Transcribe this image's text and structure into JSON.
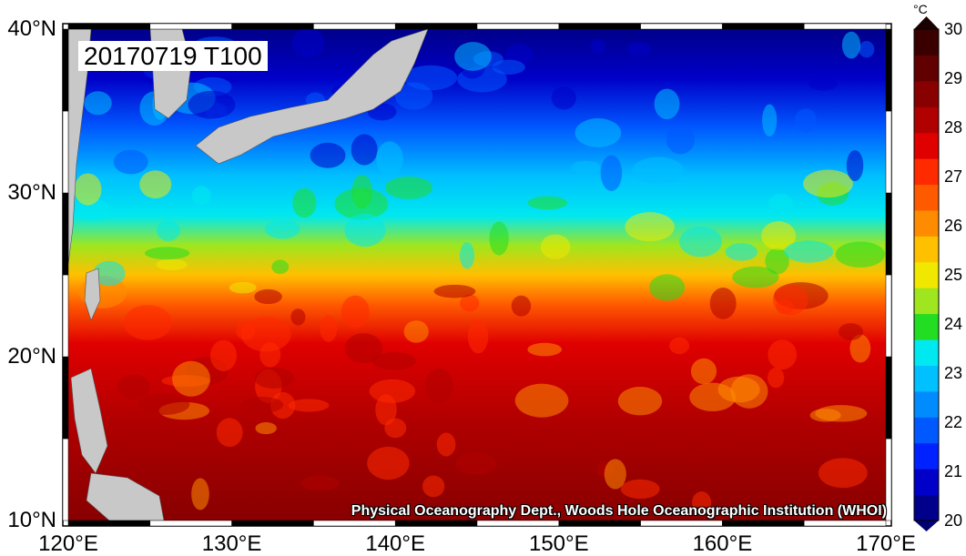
{
  "title": "20170719 T100",
  "credit": "Physical Oceanography Dept., Woods Hole Oceanographic Institution (WHOI)",
  "lat_labels": [
    "40°N",
    "30°N",
    "20°N",
    "10°N"
  ],
  "lon_labels": [
    "120°E",
    "130°E",
    "140°E",
    "150°E",
    "160°E",
    "170°E"
  ],
  "colorbar": {
    "unit": "°C",
    "ticks": [
      "30",
      "29",
      "28",
      "27",
      "26",
      "25",
      "24",
      "23",
      "22",
      "21",
      "20"
    ],
    "colors": [
      "#00008a",
      "#0000c8",
      "#0022ff",
      "#0058ff",
      "#008cff",
      "#00c0ff",
      "#00e8f0",
      "#22dd22",
      "#9fe61e",
      "#f0e800",
      "#ffc000",
      "#ff8c00",
      "#ff5a00",
      "#ff2a00",
      "#e00000",
      "#b00000",
      "#880000",
      "#600000",
      "#3a0000"
    ]
  },
  "map_data": {
    "lon_range": [
      120,
      170
    ],
    "lat_range": [
      10,
      40
    ],
    "land_color": "#c8c8c8"
  }
}
